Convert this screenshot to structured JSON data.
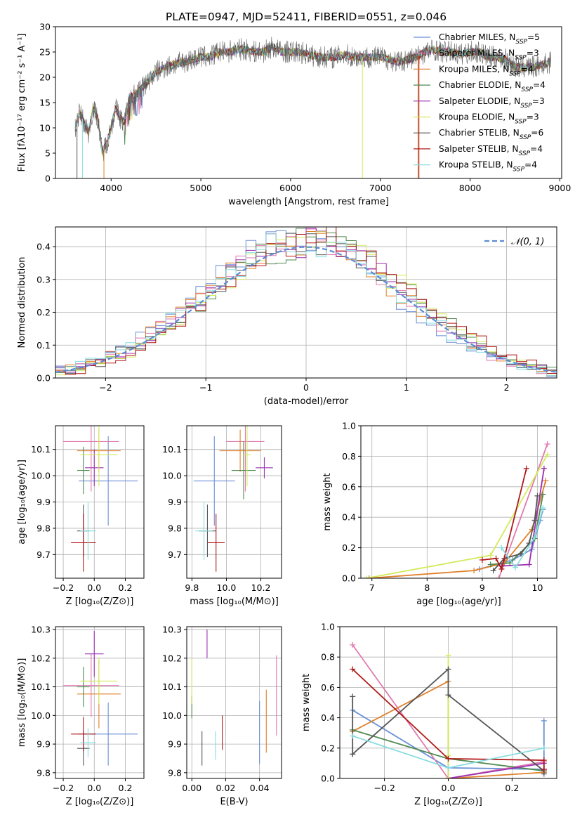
{
  "title": "PLATE=0947, MJD=52411, FIBERID=0551, z=0.046",
  "colors": [
    "#6a8fd6",
    "#e07ab0",
    "#e0802a",
    "#4f8a4f",
    "#9b30b0",
    "#d2ea5a",
    "#555555",
    "#b01818",
    "#88dde0"
  ],
  "chart_data": [
    {
      "id": "spectrum",
      "type": "line",
      "xlabel": "wavelength [Angstrom, rest frame]",
      "ylabel": "Flux [fλ10⁻¹⁷ erg cm⁻² s⁻¹ A⁻¹]",
      "xlim": [
        3380,
        9020
      ],
      "ylim": [
        0,
        30
      ],
      "xticks": [
        4000,
        5000,
        6000,
        7000,
        8000,
        9000
      ],
      "yticks": [
        0,
        5,
        10,
        15,
        20,
        25,
        30
      ],
      "grid": false,
      "legend_position": "right",
      "x": [
        3600,
        3650,
        3700,
        3750,
        3800,
        3850,
        3900,
        3950,
        4000,
        4050,
        4100,
        4150,
        4200,
        4300,
        4400,
        4500,
        4600,
        4700,
        4800,
        4900,
        5000,
        5100,
        5200,
        5300,
        5400,
        5500,
        5600,
        5700,
        5800,
        5900,
        6000,
        6100,
        6200,
        6300,
        6400,
        6500,
        6600,
        6700,
        6800,
        6900,
        7000,
        7100,
        7200,
        7300,
        7400,
        7500,
        7600,
        7700,
        7800,
        7900,
        8000,
        8100,
        8200,
        8300,
        8400,
        8500,
        8600,
        8700,
        8800,
        8900
      ],
      "y": [
        10,
        13,
        11,
        9,
        14,
        12,
        5,
        7,
        10,
        14,
        12,
        11,
        16,
        17,
        19,
        21,
        22,
        22.5,
        23,
        23.5,
        24,
        24,
        25,
        25,
        25.5,
        25.5,
        25,
        25,
        26,
        25,
        25,
        25,
        24.5,
        24,
        24,
        24,
        24.5,
        24,
        24,
        24,
        24,
        23.5,
        23,
        23.5,
        24,
        25,
        25.5,
        25,
        25,
        24.5,
        25,
        25,
        24,
        24,
        23.5,
        22,
        22,
        22,
        22.5,
        23
      ],
      "series": [
        {
          "name": "Chabrier MILES, N_SSP=5"
        },
        {
          "name": "Salpeter MILES, N_SSP=3"
        },
        {
          "name": "Kroupa MILES, N_SSP=4"
        },
        {
          "name": "Chabrier ELODIE, N_SSP=4"
        },
        {
          "name": "Salpeter ELODIE, N_SSP=3"
        },
        {
          "name": "Kroupa ELODIE, N_SSP=3"
        },
        {
          "name": "Chabrier STELIB, N_SSP=6"
        },
        {
          "name": "Salpeter STELIB, N_SSP=4"
        },
        {
          "name": "Kroupa STELIB, N_SSP=4"
        }
      ]
    },
    {
      "id": "residuals",
      "type": "histogram",
      "xlabel": "(data-model)/error",
      "ylabel": "Normed distribution",
      "xlim": [
        -2.5,
        2.5
      ],
      "ylim": [
        0,
        0.46
      ],
      "xticks": [
        -2,
        -1,
        0,
        1,
        2
      ],
      "yticks": [
        0.0,
        0.1,
        0.2,
        0.3,
        0.4
      ],
      "grid": true,
      "legend": "𝒩(0, 1)",
      "legend_position": "top-right",
      "bin_width": 0.1
    },
    {
      "id": "age_vs_Z",
      "type": "errorbar",
      "xlabel": "Z [log₁₀(Z/Z⊙)]",
      "ylabel": "age  [log₁₀(age/yr)]",
      "xlim": [
        -0.25,
        0.32
      ],
      "ylim": [
        9.61,
        10.19
      ],
      "xticks": [
        -0.2,
        0.0,
        0.2
      ],
      "yticks": [
        9.7,
        9.8,
        9.9,
        10.0,
        10.1
      ],
      "grid": true,
      "points": [
        {
          "x": 0.09,
          "y": 9.98,
          "ex": 0.19,
          "ey": 0.17
        },
        {
          "x": -0.02,
          "y": 10.13,
          "ex": 0.18,
          "ey": 0.19
        },
        {
          "x": 0.03,
          "y": 10.095,
          "ex": 0.14,
          "ey": 0.08
        },
        {
          "x": -0.07,
          "y": 10.02,
          "ex": 0.04,
          "ey": 0.09
        },
        {
          "x": 0.0,
          "y": 10.03,
          "ex": 0.06,
          "ey": 0.07
        },
        {
          "x": 0.03,
          "y": 10.08,
          "ex": 0.12,
          "ey": 0.12
        },
        {
          "x": -0.07,
          "y": 9.79,
          "ex": 0.04,
          "ey": 0.1
        },
        {
          "x": -0.07,
          "y": 9.745,
          "ex": 0.08,
          "ey": 0.11
        },
        {
          "x": -0.04,
          "y": 9.79,
          "ex": 0.05,
          "ey": 0.11
        }
      ]
    },
    {
      "id": "age_vs_mass",
      "type": "errorbar",
      "xlabel": "mass [log₁₀(M/M⊙)]",
      "ylabel": "",
      "xlim": [
        9.77,
        10.32
      ],
      "ylim": [
        9.61,
        10.19
      ],
      "xticks": [
        9.8,
        10.0,
        10.2
      ],
      "yticks": [
        9.7,
        9.8,
        9.9,
        10.0,
        10.1
      ],
      "grid": true,
      "points": [
        {
          "x": 9.93,
          "y": 9.98,
          "ex": 0.12,
          "ey": 0.17
        },
        {
          "x": 10.11,
          "y": 10.13,
          "ex": 0.11,
          "ey": 0.19
        },
        {
          "x": 10.08,
          "y": 10.095,
          "ex": 0.12,
          "ey": 0.08
        },
        {
          "x": 10.1,
          "y": 10.02,
          "ex": 0.07,
          "ey": 0.11
        },
        {
          "x": 10.22,
          "y": 10.03,
          "ex": 0.05,
          "ey": 0.04
        },
        {
          "x": 10.12,
          "y": 10.08,
          "ex": 0.02,
          "ey": 0.12
        },
        {
          "x": 9.89,
          "y": 9.79,
          "ex": 0.05,
          "ey": 0.1
        },
        {
          "x": 9.94,
          "y": 9.745,
          "ex": 0.05,
          "ey": 0.11
        },
        {
          "x": 9.87,
          "y": 9.79,
          "ex": 0.05,
          "ey": 0.11
        }
      ]
    },
    {
      "id": "massweight_vs_age",
      "type": "line",
      "xlabel": "age  [log₁₀(age/yr)]",
      "ylabel": "mass weight",
      "xlim": [
        6.8,
        10.35
      ],
      "ylim": [
        0,
        1
      ],
      "xticks": [
        7,
        8,
        9,
        10
      ],
      "yticks": [
        0.0,
        0.2,
        0.4,
        0.6,
        0.8,
        1.0
      ],
      "grid": true,
      "series": [
        {
          "x": [
            8.95,
            9.55,
            9.9,
            10.05,
            10.1
          ],
          "y": [
            0.06,
            0.12,
            0.19,
            0.38,
            0.45
          ]
        },
        {
          "x": [
            9.3,
            10.18
          ],
          "y": [
            0.0,
            0.88
          ]
        },
        {
          "x": [
            6.95,
            8.85,
            9.4,
            9.9,
            10.15
          ],
          "y": [
            0.0,
            0.05,
            0.1,
            0.32,
            0.64
          ]
        },
        {
          "x": [
            9.15,
            9.5,
            9.95,
            10.1
          ],
          "y": [
            0.09,
            0.1,
            0.26,
            0.55
          ]
        },
        {
          "x": [
            9.35,
            9.85,
            10.12
          ],
          "y": [
            0.08,
            0.09,
            0.72
          ]
        },
        {
          "x": [
            6.9,
            9.15,
            10.18
          ],
          "y": [
            0.0,
            0.15,
            0.81
          ]
        },
        {
          "x": [
            9.2,
            9.4,
            9.7,
            9.85,
            9.95,
            10.0
          ],
          "y": [
            0.05,
            0.13,
            0.16,
            0.23,
            0.38,
            0.54
          ]
        },
        {
          "x": [
            9.0,
            9.25,
            9.35,
            9.8
          ],
          "y": [
            0.12,
            0.13,
            0.06,
            0.72
          ]
        },
        {
          "x": [
            9.35,
            9.6,
            9.95,
            10.1
          ],
          "y": [
            0.2,
            0.07,
            0.27,
            0.46
          ]
        }
      ]
    },
    {
      "id": "mass_vs_Z",
      "type": "errorbar",
      "xlabel": "Z [log₁₀(Z/Z⊙)]",
      "ylabel": "mass [log₁₀(M/M⊙)]",
      "xlim": [
        -0.25,
        0.32
      ],
      "ylim": [
        9.78,
        10.31
      ],
      "xticks": [
        -0.2,
        0.0,
        0.2
      ],
      "yticks": [
        9.8,
        9.9,
        10.0,
        10.1,
        10.2,
        10.3
      ],
      "grid": true,
      "points": [
        {
          "x": 0.09,
          "y": 9.935,
          "ex": 0.19,
          "ey": 0.11
        },
        {
          "x": -0.02,
          "y": 10.105,
          "ex": 0.18,
          "ey": 0.11
        },
        {
          "x": 0.03,
          "y": 10.075,
          "ex": 0.14,
          "ey": 0.12
        },
        {
          "x": -0.07,
          "y": 10.1,
          "ex": 0.04,
          "ey": 0.07
        },
        {
          "x": 0.0,
          "y": 10.215,
          "ex": 0.06,
          "ey": 0.08
        },
        {
          "x": 0.03,
          "y": 10.12,
          "ex": 0.12,
          "ey": 0.08
        },
        {
          "x": -0.07,
          "y": 9.885,
          "ex": 0.04,
          "ey": 0.06
        },
        {
          "x": -0.07,
          "y": 9.935,
          "ex": 0.08,
          "ey": 0.06
        },
        {
          "x": -0.04,
          "y": 9.905,
          "ex": 0.05,
          "ey": 0.05
        }
      ]
    },
    {
      "id": "mass_vs_ebv",
      "type": "errorbar",
      "xlabel": "E(B-V)",
      "ylabel": "",
      "xlim": [
        -0.003,
        0.053
      ],
      "ylim": [
        9.78,
        10.31
      ],
      "xticks": [
        0.0,
        0.02,
        0.04
      ],
      "yticks": [
        9.8,
        9.9,
        10.0,
        10.1,
        10.2,
        10.3
      ],
      "grid": true,
      "points": [
        {
          "x": 0.04,
          "y": 9.94,
          "ex": 0,
          "ey": 0.11
        },
        {
          "x": 0.05,
          "y": 10.07,
          "ex": 0,
          "ey": 0.14
        },
        {
          "x": 0.044,
          "y": 9.98,
          "ex": 0,
          "ey": 0.11
        },
        {
          "x": 0.0,
          "y": 10.03,
          "ex": 0,
          "ey": 0.04
        },
        {
          "x": 0.009,
          "y": 10.25,
          "ex": 0,
          "ey": 0.05
        },
        {
          "x": 0.0,
          "y": 10.12,
          "ex": 0,
          "ey": 0.08
        },
        {
          "x": 0.006,
          "y": 9.885,
          "ex": 0,
          "ey": 0.06
        },
        {
          "x": 0.018,
          "y": 9.94,
          "ex": 0,
          "ey": 0.06
        },
        {
          "x": 0.014,
          "y": 9.895,
          "ex": 0,
          "ey": 0.05
        }
      ]
    },
    {
      "id": "massweight_vs_Z",
      "type": "line",
      "xlabel": "Z [log₁₀(Z/Z⊙)]",
      "ylabel": "mass weight",
      "xlim": [
        -0.34,
        0.34
      ],
      "ylim": [
        0,
        1
      ],
      "xticks": [
        -0.2,
        0.0,
        0.2
      ],
      "yticks": [
        0.0,
        0.2,
        0.4,
        0.6,
        0.8,
        1.0
      ],
      "grid": true,
      "series": [
        {
          "x": [
            -0.3,
            0.0,
            0.3,
            0.3
          ],
          "y": [
            0.45,
            0.07,
            0.06,
            0.38
          ]
        },
        {
          "x": [
            -0.3,
            0.0,
            0.3
          ],
          "y": [
            0.88,
            0.0,
            0.11
          ]
        },
        {
          "x": [
            -0.3,
            0.0,
            0.0,
            0.3
          ],
          "y": [
            0.31,
            0.64,
            0.0,
            0.04
          ]
        },
        {
          "x": [
            -0.3,
            0.0,
            0.3
          ],
          "y": [
            0.32,
            0.13,
            0.05
          ]
        },
        {
          "x": [
            0.0,
            0.3
          ],
          "y": [
            0.0,
            0.1
          ]
        },
        {
          "x": [
            0.0,
            0.0,
            0.0
          ],
          "y": [
            0.81,
            0.0,
            0.15
          ]
        },
        {
          "x": [
            -0.3,
            -0.3,
            -0.3,
            0.0,
            0.0,
            0.3,
            0.3
          ],
          "y": [
            0.54,
            0.16,
            0.16,
            0.72,
            0.55,
            0.05,
            0.03
          ]
        },
        {
          "x": [
            -0.3,
            0.0,
            0.3,
            0.3
          ],
          "y": [
            0.72,
            0.13,
            0.12,
            0.06
          ]
        },
        {
          "x": [
            -0.3,
            0.0,
            0.3
          ],
          "y": [
            0.28,
            0.07,
            0.2
          ]
        }
      ]
    }
  ]
}
